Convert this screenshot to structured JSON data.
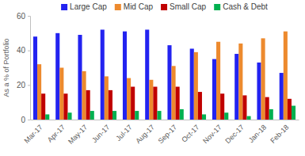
{
  "chart_data": {
    "type": "bar",
    "y_label": "As a % of Portfolio",
    "categories": [
      "Mar-17",
      "Apr-17",
      "May-17",
      "Jun-17",
      "Jul-17",
      "Aug-17",
      "Sep-17",
      "Oct-17",
      "Nov-17",
      "Dec-17",
      "Jan-18",
      "Feb-18"
    ],
    "series": [
      {
        "name": "Large Cap",
        "color": "#2323f0",
        "values": [
          48,
          50,
          49,
          52,
          51,
          52,
          43,
          41,
          35,
          38,
          33,
          27
        ]
      },
      {
        "name": "Mid Cap",
        "color": "#ed8a2e",
        "values": [
          32,
          30,
          28,
          25,
          24,
          23,
          31,
          39,
          45,
          44,
          47,
          51
        ]
      },
      {
        "name": "Small Cap",
        "color": "#c00000",
        "values": [
          15,
          15,
          17,
          17,
          19,
          19,
          19,
          16,
          15,
          14,
          13,
          12
        ]
      },
      {
        "name": "Cash & Debt",
        "color": "#00b050",
        "values": [
          3,
          4,
          5,
          5,
          5,
          5,
          6,
          3,
          4,
          2,
          6,
          8
        ]
      }
    ],
    "ylim": [
      0,
      60
    ],
    "yticks": [
      0,
      20,
      40,
      60
    ],
    "grid": false,
    "legend": "top"
  }
}
